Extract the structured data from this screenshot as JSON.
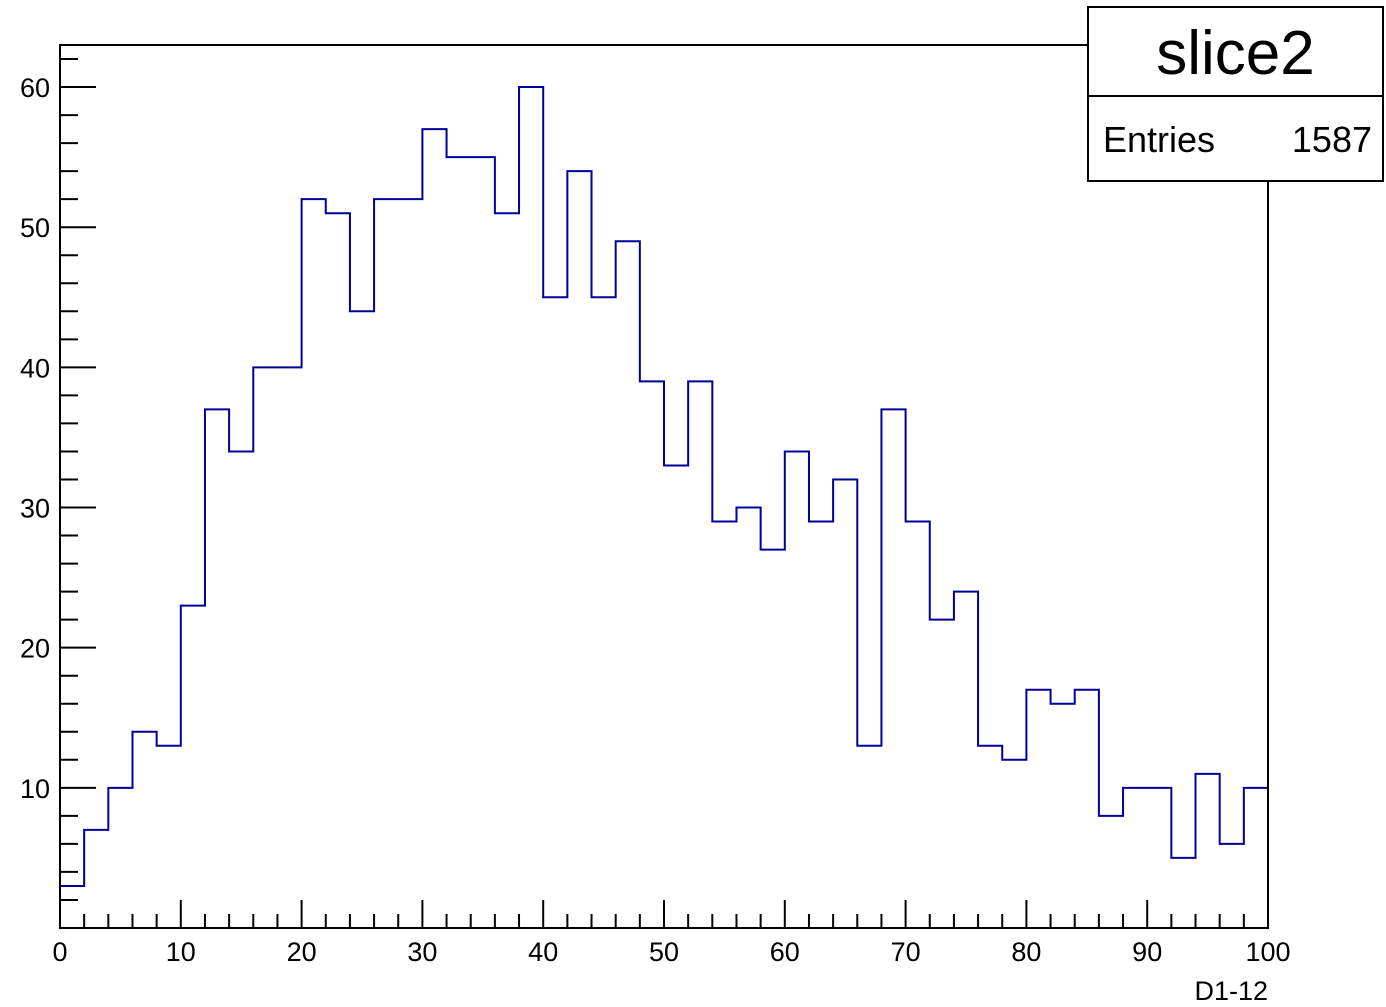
{
  "chart_data": {
    "type": "histogram",
    "title": "",
    "xlabel": "D1-12",
    "ylabel": "",
    "xlim": [
      0,
      100
    ],
    "ylim": [
      0,
      63
    ],
    "x_ticks": [
      0,
      10,
      20,
      30,
      40,
      50,
      60,
      70,
      80,
      90,
      100
    ],
    "y_ticks": [
      10,
      20,
      30,
      40,
      50,
      60
    ],
    "bin_width": 2,
    "bin_edges_start": 0,
    "values": [
      3,
      7,
      10,
      14,
      13,
      23,
      37,
      34,
      40,
      40,
      52,
      51,
      44,
      52,
      52,
      57,
      55,
      55,
      51,
      60,
      45,
      54,
      45,
      49,
      39,
      33,
      39,
      29,
      30,
      27,
      34,
      29,
      32,
      13,
      37,
      29,
      22,
      24,
      13,
      12,
      17,
      16,
      17,
      8,
      10,
      10,
      5,
      11,
      6,
      10
    ],
    "line_color": "#000099",
    "grid": false
  },
  "stats": {
    "name": "slice2",
    "entries_label": "Entries",
    "entries_value": "1587"
  }
}
